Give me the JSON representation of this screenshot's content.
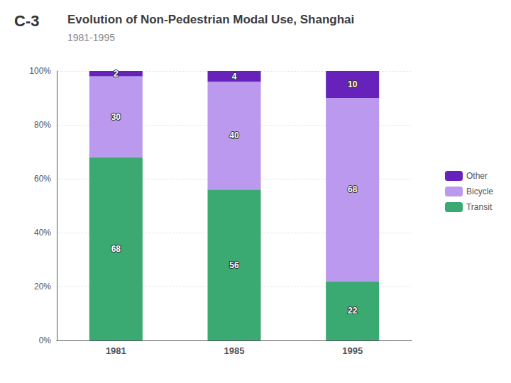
{
  "chart_data": {
    "type": "bar",
    "title": "Evolution of Non-Pedestrian Modal Use, Shanghai",
    "subtitle": "1981-1995",
    "annotations": [
      "C-3"
    ],
    "categories": [
      "1981",
      "1985",
      "1995"
    ],
    "series": [
      {
        "name": "Transit",
        "color": "#3aaa72",
        "values": [
          68,
          56,
          22
        ]
      },
      {
        "name": "Bicycle",
        "color": "#bb99ee",
        "values": [
          30,
          40,
          68
        ]
      },
      {
        "name": "Other",
        "color": "#6622bb",
        "values": [
          2,
          4,
          10
        ]
      }
    ],
    "stacked": true,
    "data_labels": true,
    "ylim": [
      0,
      100
    ],
    "yticks": [
      {
        "value": 0,
        "label": "0%"
      },
      {
        "value": 20,
        "label": "20%"
      },
      {
        "value": 40,
        "label": "40%"
      },
      {
        "value": 60,
        "label": "60%"
      },
      {
        "value": 80,
        "label": "80%"
      },
      {
        "value": 100,
        "label": "100%"
      }
    ],
    "grid": true,
    "legend": "right"
  }
}
